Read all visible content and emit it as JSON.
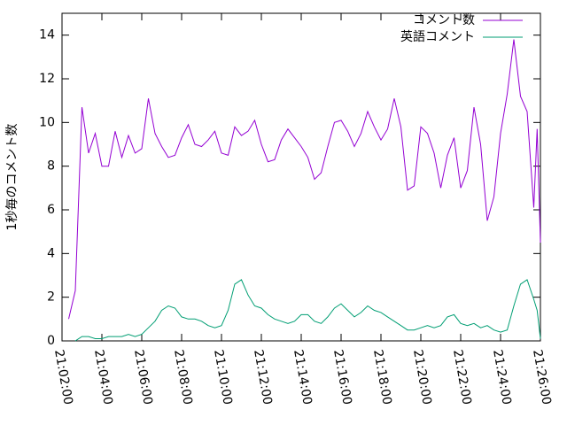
{
  "chart_data": {
    "type": "line",
    "ylabel": "1秒毎のコメント数",
    "x": [
      "21:02:20",
      "21:02:40",
      "21:03:00",
      "21:03:20",
      "21:03:40",
      "21:04:00",
      "21:04:20",
      "21:04:40",
      "21:05:00",
      "21:05:20",
      "21:05:40",
      "21:06:00",
      "21:06:20",
      "21:06:40",
      "21:07:00",
      "21:07:20",
      "21:07:40",
      "21:08:00",
      "21:08:20",
      "21:08:40",
      "21:09:00",
      "21:09:20",
      "21:09:40",
      "21:10:00",
      "21:10:20",
      "21:10:40",
      "21:11:00",
      "21:11:20",
      "21:11:40",
      "21:12:00",
      "21:12:20",
      "21:12:40",
      "21:13:00",
      "21:13:20",
      "21:13:40",
      "21:14:00",
      "21:14:20",
      "21:14:40",
      "21:15:00",
      "21:15:20",
      "21:15:40",
      "21:16:00",
      "21:16:20",
      "21:16:40",
      "21:17:00",
      "21:17:20",
      "21:17:40",
      "21:18:00",
      "21:18:20",
      "21:18:40",
      "21:19:00",
      "21:19:20",
      "21:19:40",
      "21:20:00",
      "21:20:20",
      "21:20:40",
      "21:21:00",
      "21:21:20",
      "21:21:40",
      "21:22:00",
      "21:22:20",
      "21:22:40",
      "21:23:00",
      "21:23:20",
      "21:23:40",
      "21:24:00",
      "21:24:20",
      "21:24:40",
      "21:25:00",
      "21:25:20",
      "21:25:40",
      "21:25:50",
      "21:26:00"
    ],
    "series": [
      {
        "name": "コメント数",
        "color": "#9400d3",
        "values": [
          1.0,
          2.3,
          10.7,
          8.6,
          9.5,
          8.0,
          8.0,
          9.6,
          8.4,
          9.4,
          8.6,
          8.8,
          11.1,
          9.5,
          8.9,
          8.4,
          8.5,
          9.3,
          9.9,
          9.0,
          8.9,
          9.2,
          9.6,
          8.6,
          8.5,
          9.8,
          9.4,
          9.6,
          10.1,
          9.0,
          8.2,
          8.3,
          9.2,
          9.7,
          9.3,
          8.9,
          8.4,
          7.4,
          7.7,
          8.9,
          10.0,
          10.1,
          9.6,
          8.9,
          9.5,
          10.5,
          9.8,
          9.2,
          9.7,
          11.1,
          9.8,
          6.9,
          7.1,
          9.8,
          9.5,
          8.6,
          7.0,
          8.5,
          9.3,
          7.0,
          7.8,
          10.7,
          9.0,
          5.5,
          6.6,
          9.5,
          11.3,
          13.8,
          11.2,
          10.5,
          6.1,
          9.7,
          4.5
        ]
      },
      {
        "name": "英語コメント",
        "color": "#009e73",
        "values": [
          null,
          0,
          0.2,
          0.2,
          0.1,
          0.1,
          0.2,
          0.2,
          0.2,
          0.3,
          0.2,
          0.3,
          0.6,
          0.9,
          1.4,
          1.6,
          1.5,
          1.1,
          1.0,
          1.0,
          0.9,
          0.7,
          0.6,
          0.7,
          1.4,
          2.6,
          2.8,
          2.1,
          1.6,
          1.5,
          1.2,
          1.0,
          0.9,
          0.8,
          0.9,
          1.2,
          1.2,
          0.9,
          0.8,
          1.1,
          1.5,
          1.7,
          1.4,
          1.1,
          1.3,
          1.6,
          1.4,
          1.3,
          1.1,
          0.9,
          0.7,
          0.5,
          0.5,
          0.6,
          0.7,
          0.6,
          0.7,
          1.1,
          1.2,
          0.8,
          0.7,
          0.8,
          0.6,
          0.7,
          0.5,
          0.4,
          0.5,
          1.6,
          2.6,
          2.8,
          1.9,
          1.4,
          0.1
        ]
      }
    ],
    "xlim": [
      "21:02:00",
      "21:26:00"
    ],
    "xticks": [
      "21:02:00",
      "21:04:00",
      "21:06:00",
      "21:08:00",
      "21:10:00",
      "21:12:00",
      "21:14:00",
      "21:16:00",
      "21:18:00",
      "21:20:00",
      "21:22:00",
      "21:24:00",
      "21:26:00"
    ],
    "ylim": [
      0,
      15
    ],
    "yticks": [
      0,
      2,
      4,
      6,
      8,
      10,
      12,
      14
    ],
    "legend": "top-right"
  }
}
